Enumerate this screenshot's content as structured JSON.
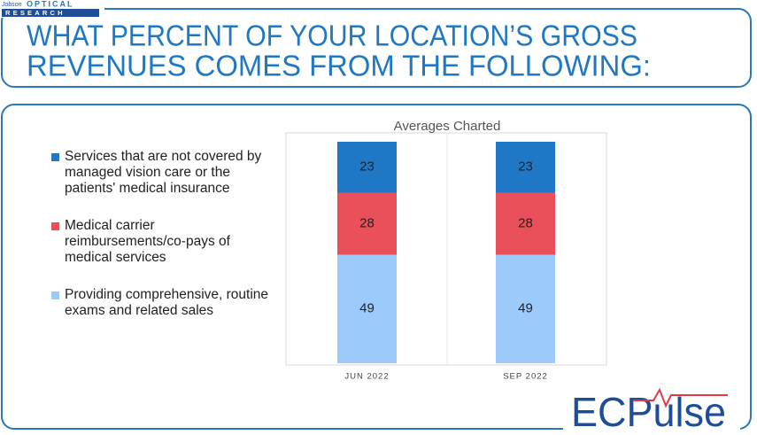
{
  "header": {
    "brand_script": "Jobson",
    "brand_top": "OPTICAL",
    "brand_bottom": "RESEARCH",
    "title_lines": [
      "WHAT PERCENT OF YOUR LOCATION’S GROSS",
      "REVENUES COMES FROM THE FOLLOWING:"
    ]
  },
  "footer_logo": "ECPulse",
  "chart_data": {
    "type": "bar",
    "stacked": true,
    "title": "Averages Charted",
    "categories": [
      "JUN 2022",
      "SEP 2022"
    ],
    "series": [
      {
        "name": "Providing comprehensive, routine exams and related sales",
        "color": "#9ccbfb",
        "values": [
          49,
          49
        ]
      },
      {
        "name": "Medical carrier reimbursements/co-pays of medical services",
        "color": "#e9505a",
        "values": [
          28,
          28
        ]
      },
      {
        "name": "Services that are not covered by managed vision care or the patients' medical insurance",
        "color": "#1f78c5",
        "values": [
          23,
          23
        ]
      }
    ],
    "ylim": [
      0,
      100
    ]
  }
}
